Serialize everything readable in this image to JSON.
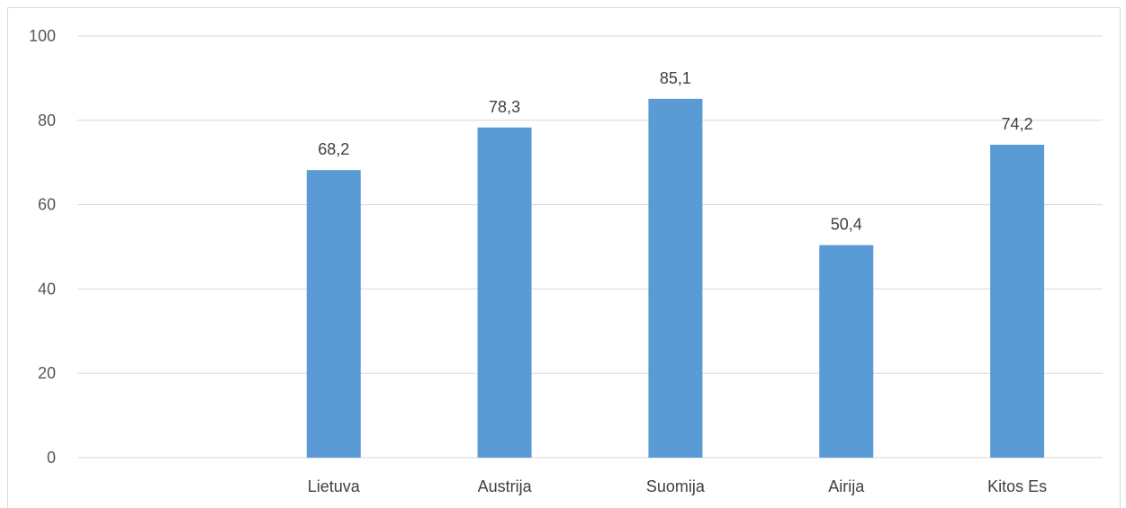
{
  "chart_data": {
    "type": "bar",
    "categories": [
      "",
      "Lietuva",
      "Austrija",
      "Suomija",
      "Airija",
      "Kitos Es"
    ],
    "values": [
      null,
      68.2,
      78.3,
      85.1,
      50.4,
      74.2
    ],
    "data_labels": [
      "",
      "68,2",
      "78,3",
      "85,1",
      "50,4",
      "74,2"
    ],
    "title": "",
    "xlabel": "",
    "ylabel": "",
    "ylim": [
      0,
      100
    ],
    "yticks": [
      0,
      20,
      40,
      60,
      80,
      100
    ],
    "grid": true,
    "legend": "none",
    "bar_color": "#5b9bd5",
    "grid_color": "#d9d9d9"
  }
}
